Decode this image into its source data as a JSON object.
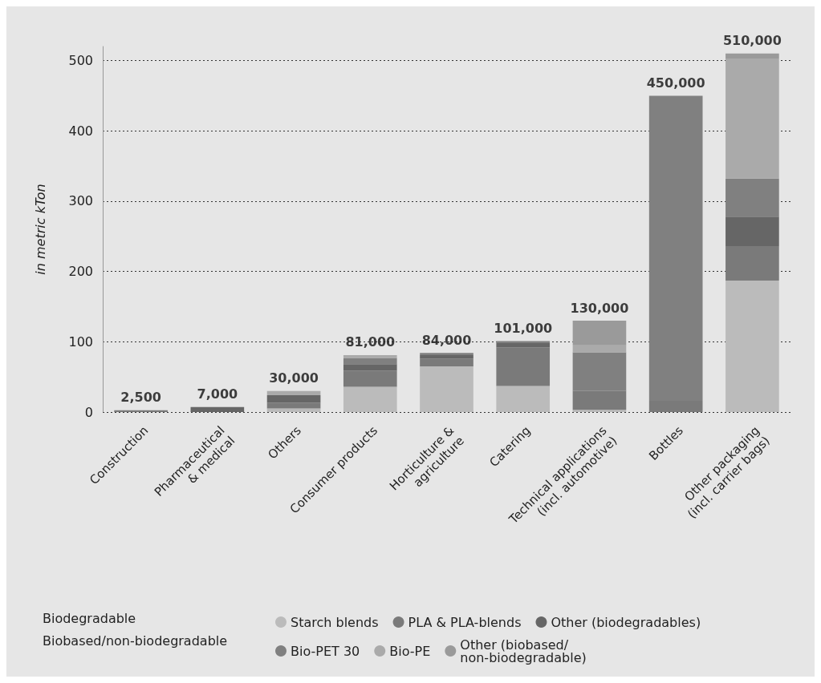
{
  "chart_data": {
    "type": "bar",
    "stacked": true,
    "ylabel": "in metric kTon",
    "categories": [
      "Construction",
      "Pharmaceutical\n& medical",
      "Others",
      "Consumer products",
      "Horticulture &\nagriculture",
      "Catering",
      "Technical applications\n(incl. automotive)",
      "Bottles",
      "Other packaging\n(incl. carrier bags)"
    ],
    "series": [
      {
        "name": "Starch blends",
        "color": "#bbbbbb",
        "values": [
          0,
          0,
          5,
          36,
          65,
          37,
          3,
          0,
          187
        ]
      },
      {
        "name": "PLA & PLA-blends",
        "color": "#7a7a7a",
        "values": [
          2.5,
          0,
          8,
          23,
          11,
          55,
          27,
          16,
          49
        ]
      },
      {
        "name": "Other (biodegradables)",
        "color": "#666666",
        "values": [
          0,
          7,
          11,
          9,
          5,
          6,
          0,
          0,
          42
        ]
      },
      {
        "name": "Bio-PET 30",
        "color": "#808080",
        "values": [
          0,
          0,
          0,
          9,
          3,
          3,
          55,
          434,
          54
        ]
      },
      {
        "name": "Bio-PE",
        "color": "#aaaaaa",
        "values": [
          0,
          0,
          6,
          4,
          0,
          0,
          10,
          0,
          171
        ]
      },
      {
        "name": "Other (biobased/ non-biodegradable)",
        "color": "#9a9a9a",
        "values": [
          0,
          0,
          0,
          0,
          0,
          0,
          35,
          0,
          7
        ]
      }
    ],
    "annotations": [
      "Biodegradable",
      "Biobased/non-biodegradable"
    ],
    "totals": [
      "2,500",
      "7,000",
      "30,000",
      "81,000",
      "84,000",
      "101,000",
      "130,000",
      "450,000",
      "510,000"
    ],
    "ylim": [
      0,
      520
    ],
    "yticks": [
      0,
      100,
      200,
      300,
      400,
      500
    ],
    "grid": "y",
    "legend": "bottom"
  }
}
